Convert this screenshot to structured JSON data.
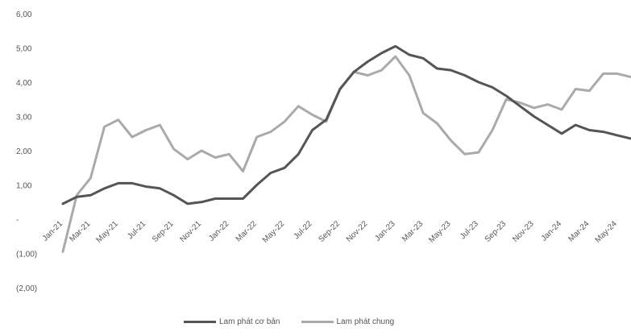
{
  "chart_data": {
    "type": "line",
    "ylim": [
      -2,
      6
    ],
    "yticks": [
      {
        "value": 6,
        "label": "6,00"
      },
      {
        "value": 5,
        "label": "5,00"
      },
      {
        "value": 4,
        "label": "4,00"
      },
      {
        "value": 3,
        "label": "3,00"
      },
      {
        "value": 2,
        "label": "2,00"
      },
      {
        "value": 1,
        "label": "1,00"
      },
      {
        "value": 0,
        "label": "-"
      },
      {
        "value": -1,
        "label": "(1,00)"
      },
      {
        "value": -2,
        "label": "(2,00)"
      }
    ],
    "x": [
      "Jan-21",
      "Feb-21",
      "Mar-21",
      "Apr-21",
      "May-21",
      "Jun-21",
      "Jul-21",
      "Aug-21",
      "Sep-21",
      "Oct-21",
      "Nov-21",
      "Dec-21",
      "Jan-22",
      "Feb-22",
      "Mar-22",
      "Apr-22",
      "May-22",
      "Jun-22",
      "Jul-22",
      "Aug-22",
      "Sep-22",
      "Oct-22",
      "Nov-22",
      "Dec-22",
      "Jan-23",
      "Feb-23",
      "Mar-23",
      "Apr-23",
      "May-23",
      "Jun-23",
      "Jul-23",
      "Aug-23",
      "Sep-23",
      "Oct-23",
      "Nov-23",
      "Dec-23",
      "Jan-24",
      "Feb-24",
      "Mar-24",
      "Apr-24",
      "May-24",
      "Jun-24"
    ],
    "xticks": [
      "Jan-21",
      "Mar-21",
      "May-21",
      "Jul-21",
      "Sep-21",
      "Nov-21",
      "Jan-22",
      "Mar-22",
      "May-22",
      "Jul-22",
      "Sep-22",
      "Nov-22",
      "Jan-23",
      "Mar-23",
      "May-23",
      "Jul-23",
      "Sep-23",
      "Nov-23",
      "Jan-24",
      "Mar-24",
      "May-24"
    ],
    "series": [
      {
        "name": "Lam phát cơ bản",
        "color": "#555555",
        "values": [
          0.45,
          0.65,
          0.7,
          0.9,
          1.05,
          1.05,
          0.95,
          0.9,
          0.7,
          0.45,
          0.5,
          0.6,
          0.6,
          0.6,
          1.0,
          1.35,
          1.5,
          1.9,
          2.6,
          2.9,
          3.8,
          4.3,
          4.6,
          4.85,
          5.05,
          4.8,
          4.7,
          4.4,
          4.35,
          4.2,
          4.0,
          3.85,
          3.6,
          3.3,
          3.0,
          2.75,
          2.5,
          2.75,
          2.6,
          2.55,
          2.45,
          2.35
        ]
      },
      {
        "name": "Lam phát chung",
        "color": "#aaaaaa",
        "values": [
          -0.95,
          0.7,
          1.2,
          2.7,
          2.9,
          2.4,
          2.6,
          2.75,
          2.05,
          1.75,
          2.0,
          1.8,
          1.9,
          1.4,
          2.4,
          2.55,
          2.85,
          3.3,
          3.05,
          2.85,
          3.8,
          4.3,
          4.2,
          4.35,
          4.75,
          4.2,
          3.1,
          2.8,
          2.3,
          1.9,
          1.95,
          2.6,
          3.5,
          3.4,
          3.25,
          3.35,
          3.2,
          3.8,
          3.75,
          4.25,
          4.25,
          4.15
        ]
      }
    ]
  }
}
